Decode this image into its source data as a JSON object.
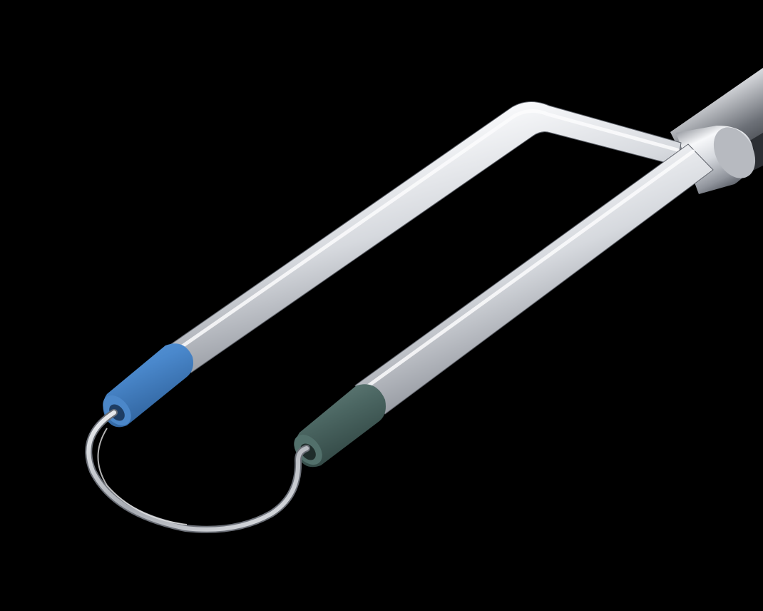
{
  "image": {
    "subject": "surgical-loop-electrode-instrument",
    "colors": {
      "background": "#000000",
      "steel_light": "#f4f5f7",
      "steel_mid": "#b9bcc2",
      "steel_dark": "#6f737b",
      "blue_insulator": "#3f7fc4",
      "green_insulator": "#4a6662",
      "shaft_dark": "#3a3d42"
    }
  }
}
